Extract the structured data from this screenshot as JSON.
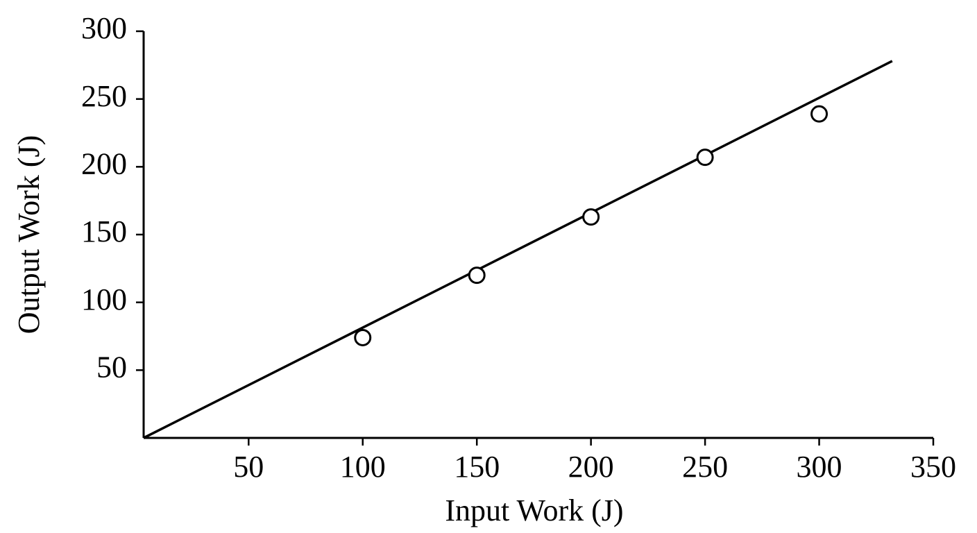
{
  "chart_data": {
    "type": "scatter",
    "x_label": "Input Work (J)",
    "y_label": "Output Work (J)",
    "x": [
      100,
      150,
      200,
      250,
      300
    ],
    "values": [
      74,
      120,
      163,
      207,
      239
    ],
    "color": "#000000",
    "fit_line": {
      "x": [
        4,
        332
      ],
      "values": [
        0,
        278
      ],
      "color": "#000000"
    },
    "xlim": [
      4,
      350
    ],
    "xticks": [
      50,
      100,
      150,
      200,
      250,
      300,
      350
    ],
    "ylim": [
      0,
      300
    ],
    "yticks": [
      50,
      100,
      150,
      200,
      250,
      300
    ],
    "grid": false
  }
}
